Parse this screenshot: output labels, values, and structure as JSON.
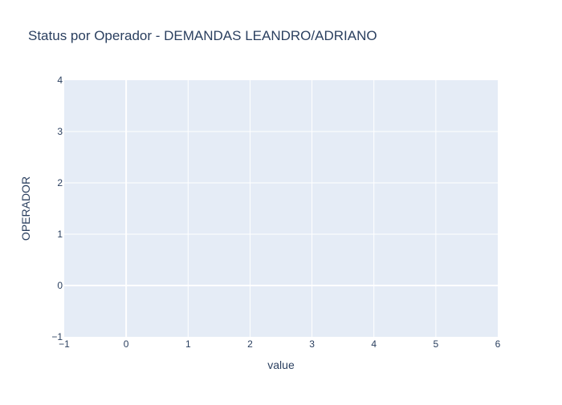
{
  "chart_data": {
    "type": "bar",
    "title": "Status por Operador - DEMANDAS LEANDRO/ADRIANO",
    "xlabel": "value",
    "ylabel": "OPERADOR",
    "xlim": [
      -1,
      6
    ],
    "ylim": [
      -1,
      4
    ],
    "x_ticks": [
      -1,
      0,
      1,
      2,
      3,
      4,
      5,
      6
    ],
    "x_tick_labels": [
      "−1",
      "0",
      "1",
      "2",
      "3",
      "4",
      "5",
      "6"
    ],
    "y_ticks": [
      -1,
      0,
      1,
      2,
      3,
      4
    ],
    "y_tick_labels": [
      "−1",
      "0",
      "1",
      "2",
      "3",
      "4"
    ],
    "series": [],
    "grid": true,
    "colors": {
      "plot_background": "#e5ecf6",
      "grid": "#ffffff",
      "text": "#2a3f5f"
    }
  }
}
